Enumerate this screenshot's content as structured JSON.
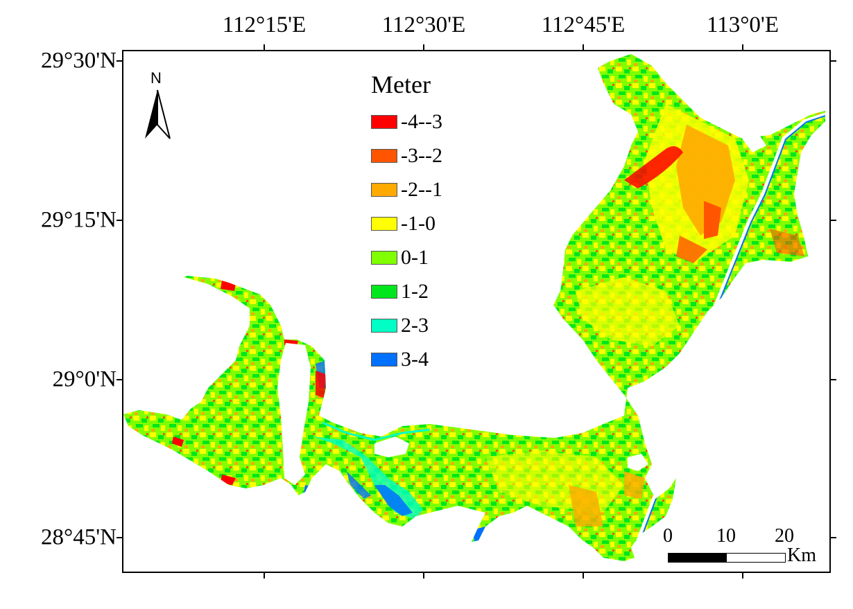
{
  "map": {
    "longitude_labels": [
      "112°15'E",
      "112°30'E",
      "112°45'E",
      "113°0'E"
    ],
    "latitude_labels": [
      "29°30'N",
      "29°15'N",
      "29°0'N",
      "28°45'N"
    ],
    "north_arrow_label": "N",
    "legend": {
      "title": "Meter",
      "items": [
        {
          "label": "-4--3",
          "color": "#ff0000"
        },
        {
          "label": "-3--2",
          "color": "#ff5500"
        },
        {
          "label": "-2--1",
          "color": "#ffaa00"
        },
        {
          "label": "-1-0",
          "color": "#ffff00"
        },
        {
          "label": "0-1",
          "color": "#80ff00"
        },
        {
          "label": "1-2",
          "color": "#00e61c"
        },
        {
          "label": "2-3",
          "color": "#00ffc5"
        },
        {
          "label": "3-4",
          "color": "#0070ff"
        }
      ]
    },
    "scale_bar": {
      "ticks": [
        "0",
        "10",
        "20"
      ],
      "unit": "Km"
    }
  }
}
